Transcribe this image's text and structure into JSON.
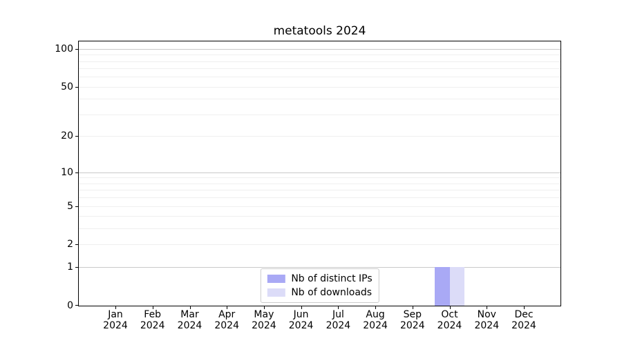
{
  "chart_data": {
    "type": "bar",
    "title": "metatools 2024",
    "categories": [
      "Jan 2024",
      "Feb 2024",
      "Mar 2024",
      "Apr 2024",
      "May 2024",
      "Jun 2024",
      "Jul 2024",
      "Aug 2024",
      "Sep 2024",
      "Oct 2024",
      "Nov 2024",
      "Dec 2024"
    ],
    "x_tick_months": [
      "Jan",
      "Feb",
      "Mar",
      "Apr",
      "May",
      "Jun",
      "Jul",
      "Aug",
      "Sep",
      "Oct",
      "Nov",
      "Dec"
    ],
    "x_tick_year": "2024",
    "series": [
      {
        "name": "Nb of distinct IPs",
        "color": "#a9a9f5",
        "values": [
          0,
          0,
          0,
          0,
          0,
          0,
          0,
          0,
          0,
          1,
          0,
          0
        ]
      },
      {
        "name": "Nb of downloads",
        "color": "#dcdcf8",
        "values": [
          0,
          0,
          0,
          0,
          0,
          0,
          0,
          0,
          0,
          1,
          0,
          0
        ]
      }
    ],
    "y_scale": "log1p",
    "ylim": [
      0,
      113.3
    ],
    "y_ticks": [
      0,
      1,
      2,
      5,
      10,
      20,
      50,
      100
    ],
    "y_major_gridlines": [
      1,
      10,
      100
    ],
    "y_minor_gridlines": [
      2,
      3,
      4,
      5,
      6,
      7,
      8,
      9,
      20,
      30,
      40,
      50,
      60,
      70,
      80,
      90
    ],
    "grid": true,
    "legend_position": "lower center",
    "colors": {
      "grid_major": "#c9c9c9",
      "grid_minor": "#efefef",
      "spine": "#000000",
      "text": "#000000",
      "legend_border": "#cccccc"
    }
  }
}
